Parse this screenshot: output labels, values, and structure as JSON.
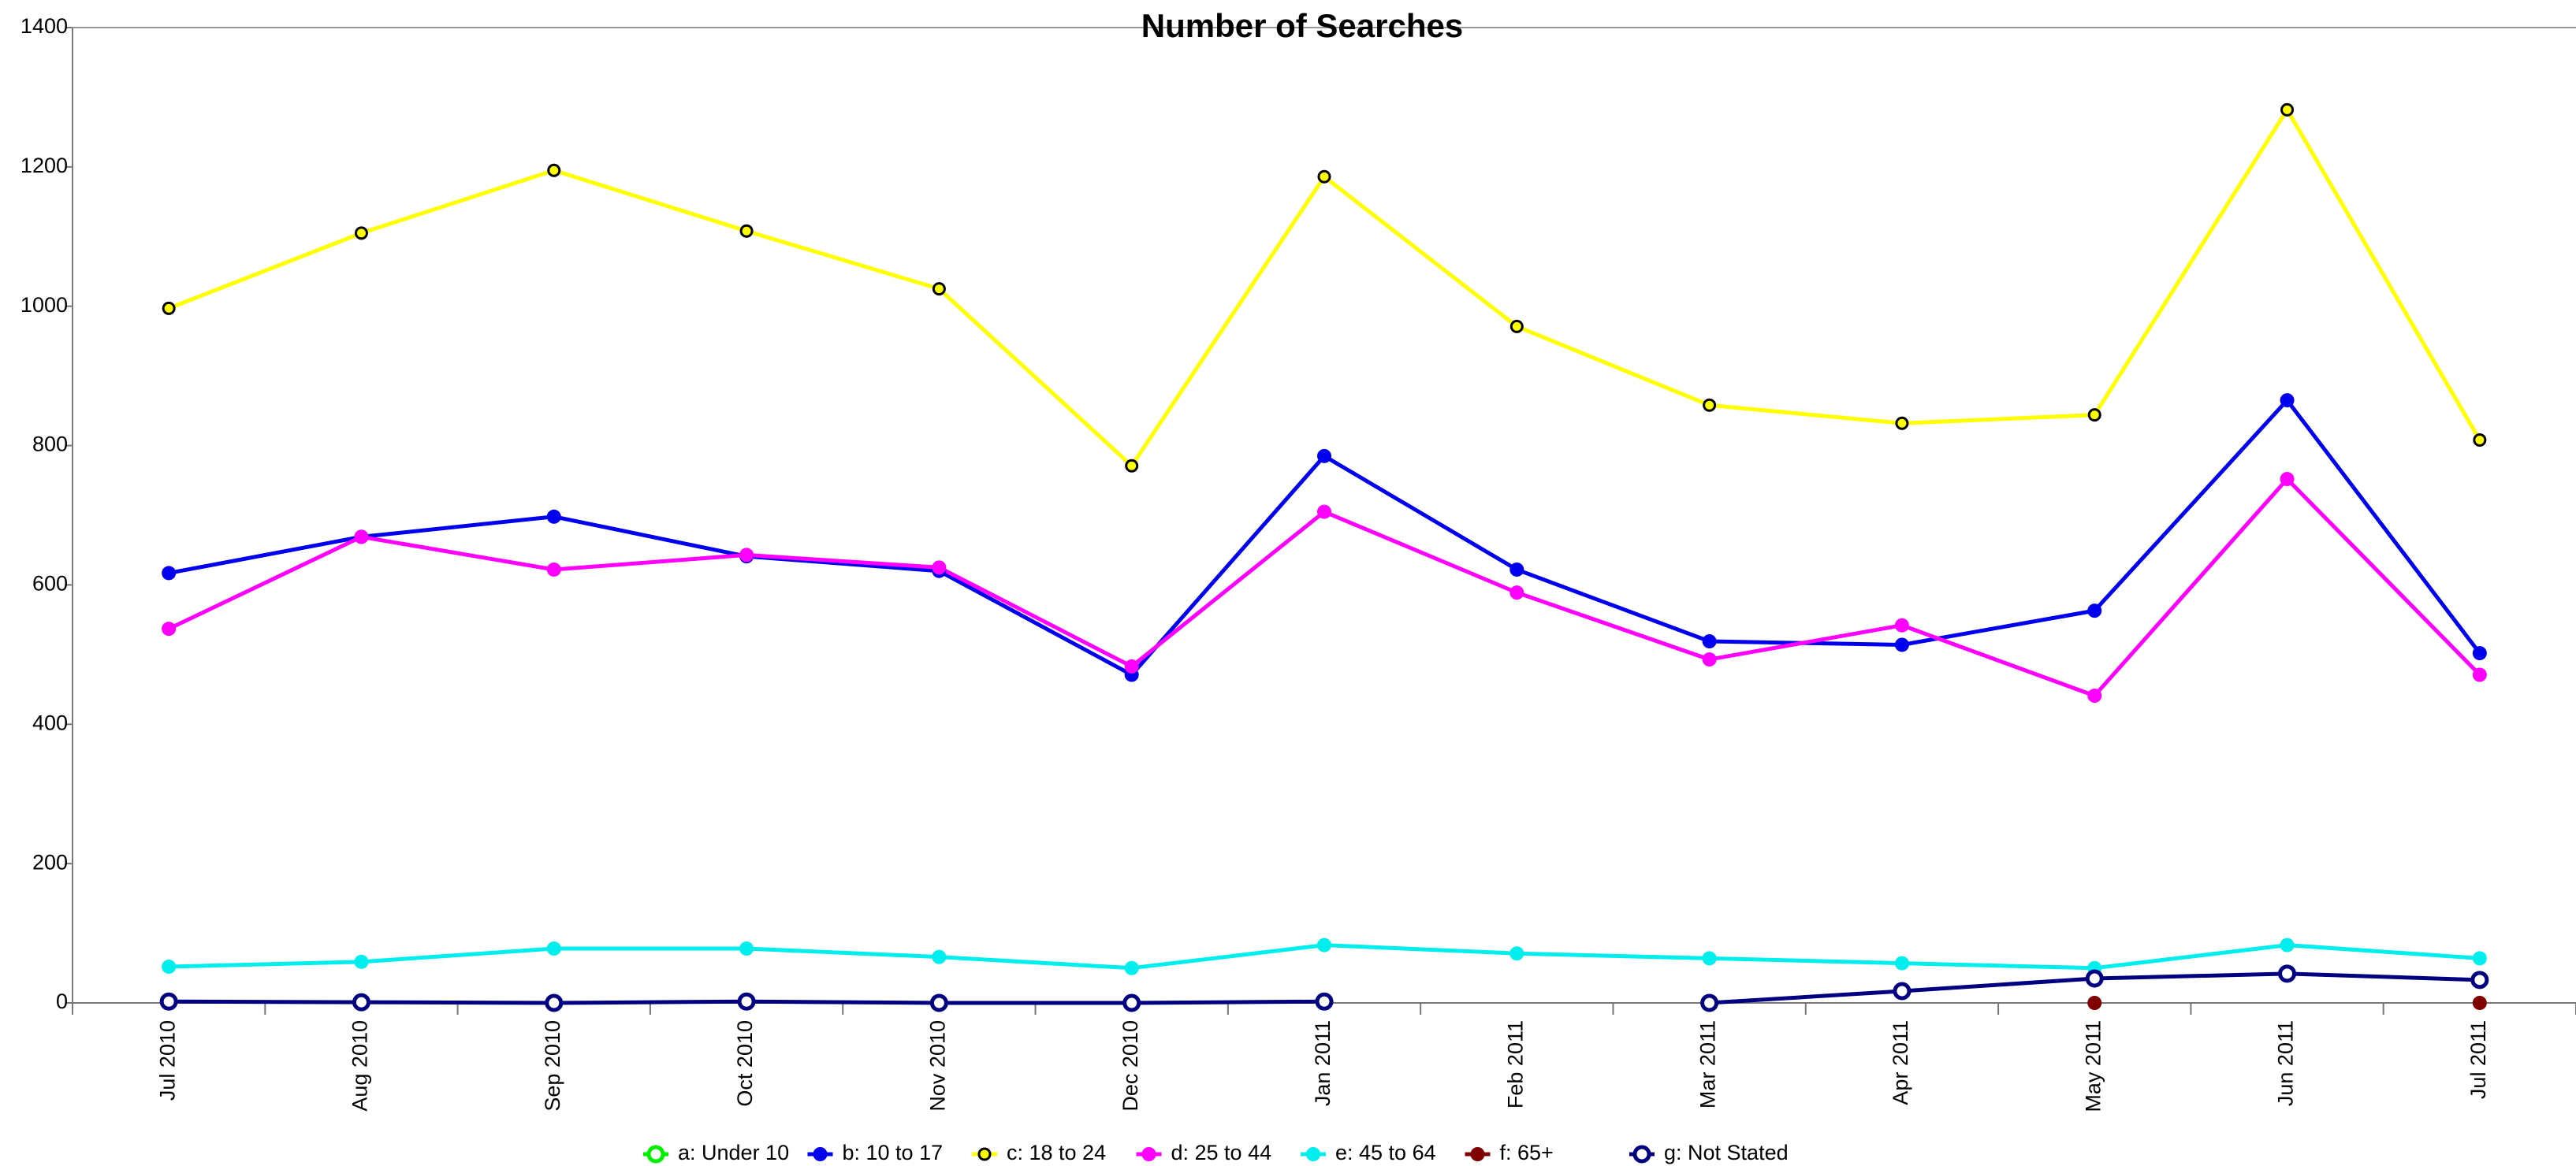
{
  "chart_data": {
    "type": "line",
    "title": "Number of Searches",
    "categories": [
      "Jul 2010",
      "Aug 2010",
      "Sep 2010",
      "Oct 2010",
      "Nov 2010",
      "Dec 2010",
      "Jan 2011",
      "Feb 2011",
      "Mar 2011",
      "Apr 2011",
      "May 2011",
      "Jun 2011",
      "Jul 2011"
    ],
    "ylim": [
      0,
      1400
    ],
    "yticks": [
      0,
      200,
      400,
      600,
      800,
      1000,
      1200,
      1400
    ],
    "legend": "bottom",
    "series": [
      {
        "name": "a: Under 10",
        "color": "#00ee00",
        "marker": "hollow",
        "values": [
          null,
          null,
          null,
          null,
          null,
          null,
          null,
          null,
          null,
          null,
          null,
          null,
          null
        ]
      },
      {
        "name": "b: 10 to 17",
        "color": "#0000ee",
        "marker": "filled",
        "values": [
          617,
          669,
          698,
          641,
          620,
          471,
          785,
          622,
          519,
          514,
          563,
          865,
          502
        ]
      },
      {
        "name": "c: 18 to 24",
        "color": "#ffff00",
        "marker": "dot",
        "values": [
          997,
          1105,
          1195,
          1108,
          1025,
          771,
          1186,
          971,
          858,
          832,
          844,
          1282,
          808
        ]
      },
      {
        "name": "d: 25 to 44",
        "color": "#ff00ff",
        "marker": "filled",
        "values": [
          537,
          669,
          622,
          643,
          625,
          483,
          705,
          589,
          493,
          542,
          441,
          752,
          471
        ]
      },
      {
        "name": "e: 45 to 64",
        "color": "#00eeee",
        "marker": "filled",
        "values": [
          52,
          59,
          78,
          78,
          66,
          50,
          83,
          71,
          64,
          57,
          50,
          83,
          64
        ]
      },
      {
        "name": "f: 65+",
        "color": "#800000",
        "marker": "filled",
        "values": [
          null,
          null,
          null,
          null,
          null,
          null,
          null,
          null,
          null,
          null,
          0,
          null,
          0
        ]
      },
      {
        "name": "g: Not Stated",
        "color": "#000080",
        "marker": "hollow",
        "values": [
          2,
          1,
          0,
          2,
          0,
          0,
          2,
          null,
          0,
          17,
          35,
          42,
          33
        ]
      }
    ]
  }
}
